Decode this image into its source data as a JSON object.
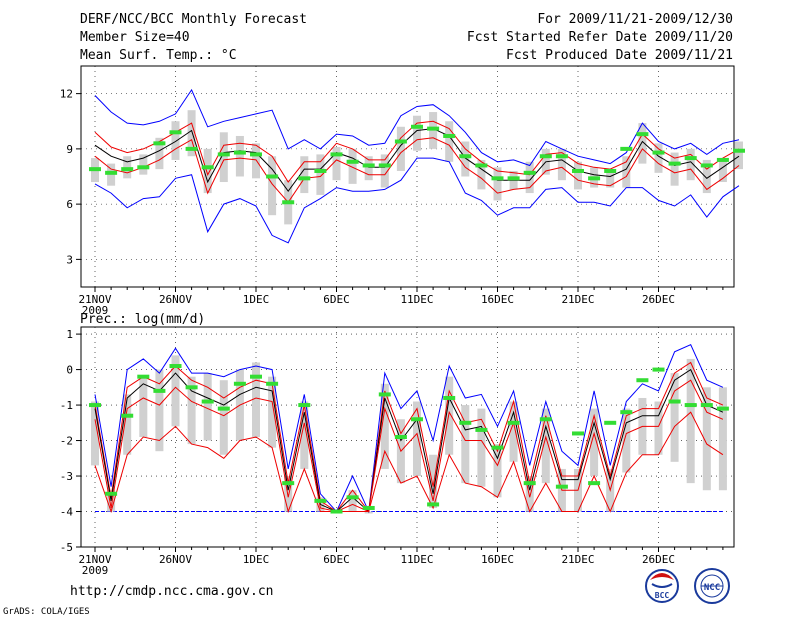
{
  "header": {
    "title": "DERF/NCC/BCC Monthly Forecast",
    "member_size": "Member Size=40",
    "variable": "Mean Surf. Temp.: °C",
    "period": "For 2009/11/21-2009/12/30",
    "fcst_started": "Fcst Started Refer Date 2009/11/20",
    "fcst_produced": "Fcst Produced Date 2009/11/21"
  },
  "footer": {
    "url": "http://cmdp.ncc.cma.gov.cn",
    "grads": "GrADS: COLA/IGES",
    "logo_bcc": "BCC",
    "logo_ncc": "NCC"
  },
  "colors": {
    "envelope": "#0000ff",
    "spread": "#ee0000",
    "mean": "#000000",
    "box": "#d0d0d0",
    "marker": "#33dd33",
    "grid": "#000000"
  },
  "chart_data": [
    {
      "type": "line",
      "title": "Mean Surf. Temp.: °C",
      "xlabel": "",
      "ylabel": "°C",
      "ylim": [
        1.5,
        13.5
      ],
      "yticks": [
        3,
        6,
        9,
        12
      ],
      "x_start_day": 0,
      "x_end_day": 39,
      "xticks": [
        {
          "day": 0,
          "label": "21NOV",
          "sub": "2009"
        },
        {
          "day": 5,
          "label": "26NOV",
          "sub": ""
        },
        {
          "day": 10,
          "label": "1DEC",
          "sub": ""
        },
        {
          "day": 15,
          "label": "6DEC",
          "sub": ""
        },
        {
          "day": 20,
          "label": "11DEC",
          "sub": ""
        },
        {
          "day": 25,
          "label": "16DEC",
          "sub": ""
        },
        {
          "day": 30,
          "label": "21DEC",
          "sub": ""
        },
        {
          "day": 35,
          "label": "26DEC",
          "sub": ""
        }
      ],
      "series": [
        {
          "name": "max",
          "color": "#0000ff",
          "values": [
            11.9,
            11.0,
            10.4,
            10.3,
            10.5,
            10.9,
            12.2,
            10.2,
            10.5,
            10.7,
            10.9,
            11.1,
            9.0,
            9.5,
            9.0,
            9.8,
            9.7,
            9.2,
            9.3,
            10.8,
            11.3,
            11.4,
            10.8,
            9.9,
            8.8,
            8.3,
            8.4,
            8.1,
            9.4,
            9.0,
            8.6,
            8.4,
            8.2,
            8.8,
            10.4,
            9.4,
            9.0,
            9.3,
            8.7,
            9.3,
            9.5
          ]
        },
        {
          "name": "p_hi",
          "color": "#ee0000",
          "values": [
            9.9,
            9.1,
            8.8,
            9.0,
            9.4,
            9.9,
            10.4,
            7.6,
            9.2,
            9.3,
            9.2,
            8.6,
            7.2,
            8.3,
            8.3,
            9.3,
            9.0,
            8.4,
            8.4,
            9.6,
            10.4,
            10.5,
            10.1,
            9.0,
            8.3,
            7.8,
            7.7,
            7.6,
            8.7,
            8.8,
            8.2,
            8.0,
            7.9,
            8.3,
            9.8,
            9.0,
            8.5,
            8.7,
            7.9,
            8.5,
            9.0
          ]
        },
        {
          "name": "mean",
          "color": "#000000",
          "values": [
            9.2,
            8.6,
            8.3,
            8.5,
            8.9,
            9.4,
            10.0,
            7.2,
            8.8,
            8.9,
            8.8,
            7.9,
            6.7,
            7.9,
            7.9,
            8.8,
            8.5,
            8.0,
            8.0,
            9.2,
            10.0,
            10.1,
            9.7,
            8.5,
            7.9,
            7.3,
            7.3,
            7.3,
            8.3,
            8.4,
            7.8,
            7.6,
            7.5,
            7.9,
            9.4,
            8.6,
            8.1,
            8.3,
            7.4,
            8.0,
            8.6
          ]
        },
        {
          "name": "p_lo",
          "color": "#ee0000",
          "values": [
            8.6,
            7.9,
            7.7,
            8.0,
            8.4,
            9.0,
            9.5,
            6.6,
            8.4,
            8.5,
            8.4,
            7.1,
            6.1,
            7.4,
            7.5,
            8.4,
            8.0,
            7.6,
            7.6,
            8.8,
            9.5,
            9.6,
            9.2,
            8.0,
            7.4,
            6.6,
            6.8,
            6.9,
            7.8,
            8.0,
            7.3,
            7.1,
            7.0,
            7.5,
            9.0,
            8.2,
            7.7,
            7.9,
            6.8,
            7.4,
            8.1
          ]
        },
        {
          "name": "min",
          "color": "#0000ff",
          "values": [
            7.1,
            6.6,
            5.8,
            6.3,
            6.4,
            7.4,
            7.6,
            4.5,
            6.0,
            6.3,
            5.9,
            4.3,
            3.9,
            5.8,
            6.3,
            6.9,
            6.7,
            6.7,
            6.8,
            7.3,
            8.5,
            8.5,
            8.3,
            6.6,
            6.2,
            5.4,
            5.8,
            5.8,
            6.8,
            6.9,
            6.1,
            6.1,
            5.9,
            6.9,
            6.9,
            6.2,
            5.9,
            6.5,
            5.3,
            6.4,
            7.0
          ]
        }
      ],
      "boxes": [
        [
          7.2,
          8.5
        ],
        [
          7.0,
          8.2
        ],
        [
          7.4,
          8.6
        ],
        [
          7.6,
          8.7
        ],
        [
          7.9,
          9.6
        ],
        [
          8.4,
          10.5
        ],
        [
          8.6,
          11.1
        ],
        [
          6.6,
          9.0
        ],
        [
          7.2,
          9.9
        ],
        [
          7.5,
          9.7
        ],
        [
          7.4,
          9.3
        ],
        [
          5.4,
          8.6
        ],
        [
          4.9,
          7.3
        ],
        [
          6.6,
          8.6
        ],
        [
          6.5,
          8.7
        ],
        [
          7.3,
          9.1
        ],
        [
          7.1,
          9.0
        ],
        [
          7.3,
          8.6
        ],
        [
          6.9,
          8.7
        ],
        [
          7.8,
          10.2
        ],
        [
          8.9,
          10.8
        ],
        [
          9.0,
          11.0
        ],
        [
          8.3,
          10.5
        ],
        [
          7.5,
          9.4
        ],
        [
          6.8,
          8.4
        ],
        [
          6.2,
          8.0
        ],
        [
          6.8,
          7.8
        ],
        [
          6.6,
          8.3
        ],
        [
          7.6,
          9.0
        ],
        [
          7.3,
          9.0
        ],
        [
          6.8,
          8.3
        ],
        [
          6.9,
          8.0
        ],
        [
          6.9,
          7.9
        ],
        [
          6.9,
          8.6
        ],
        [
          8.2,
          10.4
        ],
        [
          7.7,
          9.3
        ],
        [
          7.0,
          8.8
        ],
        [
          7.3,
          9.0
        ],
        [
          6.6,
          8.4
        ],
        [
          7.2,
          8.5
        ],
        [
          7.9,
          9.4
        ]
      ],
      "markers": [
        7.9,
        7.7,
        7.9,
        8.0,
        9.3,
        9.9,
        9.0,
        8.0,
        8.7,
        8.8,
        8.7,
        7.5,
        6.1,
        7.4,
        7.8,
        8.7,
        8.3,
        8.1,
        8.1,
        9.4,
        10.2,
        10.1,
        9.7,
        8.6,
        8.1,
        7.4,
        7.4,
        7.7,
        8.6,
        8.6,
        7.8,
        7.4,
        7.8,
        9.0,
        9.8,
        8.8,
        8.2,
        8.5,
        8.1,
        8.4,
        8.9
      ]
    },
    {
      "type": "line",
      "title": "Prec.: log(mm/d)",
      "xlabel": "",
      "ylabel": "log(mm/d)",
      "ylim": [
        -5,
        1.2
      ],
      "yticks": [
        -5,
        -4,
        -3,
        -2,
        -1,
        0,
        1
      ],
      "x_start_day": 0,
      "x_end_day": 39,
      "baseline": -4,
      "xticks": [
        {
          "day": 0,
          "label": "21NOV",
          "sub": "2009"
        },
        {
          "day": 5,
          "label": "26NOV",
          "sub": ""
        },
        {
          "day": 10,
          "label": "1DEC",
          "sub": ""
        },
        {
          "day": 15,
          "label": "6DEC",
          "sub": ""
        },
        {
          "day": 20,
          "label": "11DEC",
          "sub": ""
        },
        {
          "day": 25,
          "label": "16DEC",
          "sub": ""
        },
        {
          "day": 30,
          "label": "21DEC",
          "sub": ""
        },
        {
          "day": 35,
          "label": "26DEC",
          "sub": ""
        }
      ],
      "series": [
        {
          "name": "max",
          "color": "#0000ff",
          "values": [
            -0.7,
            -3.3,
            0.0,
            0.3,
            -0.1,
            0.6,
            -0.1,
            -0.1,
            -0.2,
            0.0,
            0.1,
            0.0,
            -2.8,
            -0.7,
            -3.5,
            -4.0,
            -3.0,
            -4.0,
            -0.1,
            -1.1,
            -0.6,
            -2.0,
            0.1,
            -0.8,
            -0.7,
            -1.6,
            -0.6,
            -2.7,
            -0.9,
            -2.3,
            -2.7,
            -0.6,
            -2.7,
            -0.9,
            -0.4,
            -0.6,
            0.5,
            0.7,
            -0.3,
            -0.5,
            null
          ]
        },
        {
          "name": "p_hi",
          "color": "#ee0000",
          "values": [
            -1.0,
            -3.6,
            -0.5,
            -0.2,
            -0.4,
            0.1,
            -0.3,
            -0.5,
            -0.8,
            -0.5,
            -0.3,
            -0.4,
            -3.2,
            -1.0,
            -3.7,
            -4.0,
            -3.4,
            -4.0,
            -0.6,
            -1.8,
            -1.1,
            -3.3,
            -0.6,
            -1.5,
            -1.4,
            -2.3,
            -0.9,
            -3.2,
            -1.3,
            -3.0,
            -3.0,
            -1.3,
            -3.0,
            -1.3,
            -1.1,
            -1.1,
            -0.1,
            0.2,
            -0.8,
            -1.0,
            null
          ]
        },
        {
          "name": "mean",
          "color": "#000000",
          "values": [
            -1.1,
            -3.7,
            -0.8,
            -0.4,
            -0.6,
            -0.1,
            -0.6,
            -0.8,
            -1.0,
            -0.7,
            -0.5,
            -0.6,
            -3.4,
            -1.2,
            -3.8,
            -4.0,
            -3.6,
            -4.0,
            -0.8,
            -2.0,
            -1.4,
            -3.5,
            -0.8,
            -1.7,
            -1.6,
            -2.5,
            -1.2,
            -3.4,
            -1.6,
            -3.1,
            -3.1,
            -1.5,
            -3.1,
            -1.5,
            -1.3,
            -1.3,
            -0.3,
            0.0,
            -1.0,
            -1.2,
            null
          ]
        },
        {
          "name": "p_lo",
          "color": "#ee0000",
          "values": [
            -1.4,
            -3.9,
            -1.1,
            -0.8,
            -1.0,
            -0.5,
            -0.9,
            -1.1,
            -1.3,
            -1.0,
            -0.8,
            -0.9,
            -3.6,
            -1.5,
            -3.9,
            -4.0,
            -3.8,
            -4.0,
            -1.1,
            -2.3,
            -1.8,
            -3.7,
            -1.2,
            -2.0,
            -2.0,
            -2.7,
            -1.5,
            -3.6,
            -1.9,
            -3.4,
            -3.4,
            -1.8,
            -3.4,
            -1.8,
            -1.6,
            -1.6,
            -0.6,
            -0.3,
            -1.2,
            -1.4,
            null
          ]
        },
        {
          "name": "min",
          "color": "#ee0000",
          "values": [
            -2.7,
            -4.0,
            -2.4,
            -1.9,
            -2.0,
            -1.6,
            -2.1,
            -2.2,
            -2.5,
            -2.0,
            -1.9,
            -2.2,
            -4.0,
            -2.8,
            -4.0,
            -4.0,
            -4.0,
            -4.0,
            -2.3,
            -3.2,
            -3.0,
            -3.9,
            -2.4,
            -3.2,
            -3.3,
            -3.6,
            -2.6,
            -4.0,
            -3.2,
            -4.0,
            -4.0,
            -3.0,
            -4.0,
            -2.9,
            -2.4,
            -2.4,
            -1.6,
            -1.2,
            -2.1,
            -2.4,
            null
          ]
        }
      ],
      "boxes": [
        [
          -2.7,
          -0.9
        ],
        [
          -4.0,
          -3.4
        ],
        [
          -2.4,
          -0.7
        ],
        [
          -1.9,
          -0.2
        ],
        [
          -2.3,
          0.0
        ],
        [
          -1.6,
          0.4
        ],
        [
          -2.1,
          -0.2
        ],
        [
          -2.0,
          -0.1
        ],
        [
          -2.4,
          -0.3
        ],
        [
          -2.0,
          0.0
        ],
        [
          -1.9,
          0.2
        ],
        [
          -2.2,
          -0.2
        ],
        [
          -4.0,
          -3.0
        ],
        [
          -2.8,
          -0.9
        ],
        [
          -4.0,
          -3.6
        ],
        [
          -4.0,
          -4.0
        ],
        [
          -4.0,
          -3.4
        ],
        [
          -4.0,
          -4.0
        ],
        [
          -2.8,
          -0.4
        ],
        [
          -3.2,
          -1.4
        ],
        [
          -3.0,
          -0.9
        ],
        [
          -3.9,
          -2.4
        ],
        [
          -2.4,
          -0.2
        ],
        [
          -3.2,
          -1.0
        ],
        [
          -3.3,
          -1.1
        ],
        [
          -3.6,
          -2.1
        ],
        [
          -2.6,
          -0.9
        ],
        [
          -4.0,
          -3.0
        ],
        [
          -3.2,
          -1.1
        ],
        [
          -4.0,
          -2.8
        ],
        [
          -4.0,
          -2.8
        ],
        [
          -3.0,
          -1.1
        ],
        [
          -4.0,
          -2.8
        ],
        [
          -2.9,
          -1.1
        ],
        [
          -2.4,
          -0.8
        ],
        [
          -2.4,
          -0.9
        ],
        [
          -2.6,
          -0.1
        ],
        [
          -3.2,
          0.3
        ],
        [
          -3.4,
          -0.5
        ],
        [
          -3.4,
          -0.5
        ],
        null
      ],
      "markers": [
        -1.0,
        -3.5,
        -1.3,
        -0.2,
        -0.6,
        0.1,
        -0.5,
        -0.9,
        -1.1,
        -0.4,
        -0.2,
        -0.4,
        -3.2,
        -1.0,
        -3.7,
        -4.0,
        -3.6,
        -3.9,
        -0.7,
        -1.9,
        -1.4,
        -3.8,
        -0.8,
        -1.5,
        -1.7,
        -2.2,
        -1.5,
        -3.2,
        -1.4,
        -3.3,
        -1.8,
        -3.2,
        -1.5,
        -1.2,
        -0.3,
        0.0,
        -0.9,
        -1.0,
        -1.0,
        -1.1,
        null
      ]
    }
  ]
}
